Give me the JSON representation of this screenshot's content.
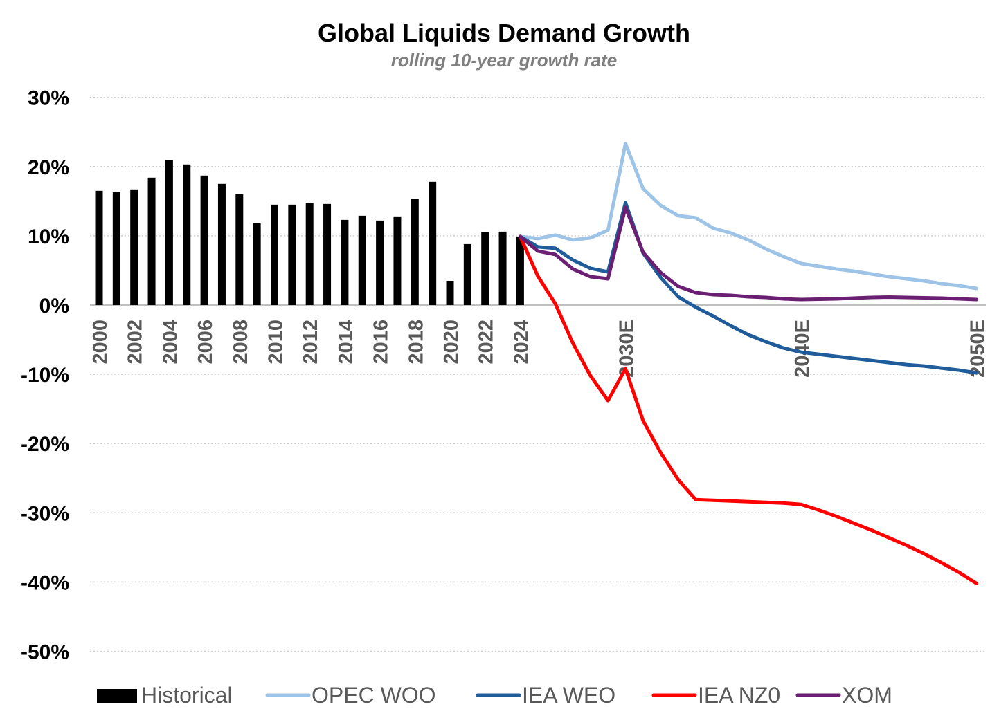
{
  "chart_data": {
    "type": "bar+line",
    "title": "Global Liquids Demand Growth",
    "subtitle": "rolling 10-year growth rate",
    "xlabel": "",
    "ylabel": "",
    "ylim": [
      -50,
      30
    ],
    "yticks": [
      30,
      20,
      10,
      0,
      -10,
      -20,
      -30,
      -40,
      -50
    ],
    "ytick_labels": [
      "30%",
      "20%",
      "10%",
      "0%",
      "-10%",
      "-20%",
      "-30%",
      "-40%",
      "-50%"
    ],
    "xtick_labels": [
      {
        "year": 2000,
        "label": "2000"
      },
      {
        "year": 2002,
        "label": "2002"
      },
      {
        "year": 2004,
        "label": "2004"
      },
      {
        "year": 2006,
        "label": "2006"
      },
      {
        "year": 2008,
        "label": "2008"
      },
      {
        "year": 2010,
        "label": "2010"
      },
      {
        "year": 2012,
        "label": "2012"
      },
      {
        "year": 2014,
        "label": "2014"
      },
      {
        "year": 2016,
        "label": "2016"
      },
      {
        "year": 2018,
        "label": "2018"
      },
      {
        "year": 2020,
        "label": "2020"
      },
      {
        "year": 2022,
        "label": "2022"
      },
      {
        "year": 2024,
        "label": "2024"
      },
      {
        "year": 2030,
        "label": "2030E"
      },
      {
        "year": 2040,
        "label": "2040E"
      },
      {
        "year": 2050,
        "label": "2050E"
      }
    ],
    "grid": true,
    "legend_position": "bottom",
    "bars": {
      "name": "Historical",
      "color": "#000000",
      "x": [
        2000,
        2001,
        2002,
        2003,
        2004,
        2005,
        2006,
        2007,
        2008,
        2009,
        2010,
        2011,
        2012,
        2013,
        2014,
        2015,
        2016,
        2017,
        2018,
        2019,
        2020,
        2021,
        2022,
        2023,
        2024
      ],
      "values": [
        16.5,
        16.3,
        16.7,
        18.4,
        20.9,
        20.3,
        18.7,
        17.5,
        16.0,
        11.8,
        14.5,
        14.5,
        14.7,
        14.6,
        12.3,
        12.9,
        12.2,
        12.8,
        15.3,
        17.8,
        3.5,
        8.8,
        10.5,
        10.6,
        9.9
      ]
    },
    "line_x": [
      2024,
      2025,
      2026,
      2027,
      2028,
      2029,
      2030,
      2031,
      2032,
      2033,
      2034,
      2035,
      2036,
      2037,
      2038,
      2039,
      2040,
      2041,
      2042,
      2043,
      2044,
      2045,
      2046,
      2047,
      2048,
      2049,
      2050
    ],
    "series": [
      {
        "name": "OPEC WOO",
        "color": "#9dc3e6",
        "values": [
          9.9,
          9.6,
          10.1,
          9.4,
          9.7,
          10.8,
          23.3,
          16.8,
          14.4,
          12.9,
          12.6,
          11.1,
          10.4,
          9.4,
          8.1,
          7.0,
          6.0,
          5.6,
          5.2,
          4.9,
          4.5,
          4.1,
          3.8,
          3.5,
          3.1,
          2.8,
          2.4
        ]
      },
      {
        "name": "IEA WEO",
        "color": "#1f5c99",
        "values": [
          9.9,
          8.4,
          8.2,
          6.5,
          5.3,
          4.8,
          14.8,
          7.5,
          4.0,
          1.2,
          -0.3,
          -1.6,
          -3.0,
          -4.3,
          -5.3,
          -6.2,
          -6.8,
          -7.1,
          -7.4,
          -7.7,
          -8.0,
          -8.3,
          -8.6,
          -8.8,
          -9.1,
          -9.4,
          -9.8
        ]
      },
      {
        "name": "IEA NZ0",
        "color": "#ff0000",
        "values": [
          9.9,
          4.2,
          0.2,
          -5.5,
          -10.2,
          -13.8,
          -9.2,
          -16.7,
          -21.3,
          -25.2,
          -28.1,
          -28.2,
          -28.3,
          -28.4,
          -28.5,
          -28.6,
          -28.8,
          -29.6,
          -30.5,
          -31.5,
          -32.5,
          -33.6,
          -34.7,
          -35.9,
          -37.2,
          -38.6,
          -40.2
        ]
      },
      {
        "name": "XOM",
        "color": "#6b1f72",
        "values": [
          9.9,
          7.8,
          7.3,
          5.2,
          4.1,
          3.8,
          14.1,
          7.6,
          4.7,
          2.7,
          1.8,
          1.5,
          1.4,
          1.2,
          1.1,
          0.9,
          0.8,
          0.85,
          0.9,
          1.0,
          1.1,
          1.15,
          1.1,
          1.05,
          1.0,
          0.9,
          0.8
        ]
      }
    ]
  }
}
